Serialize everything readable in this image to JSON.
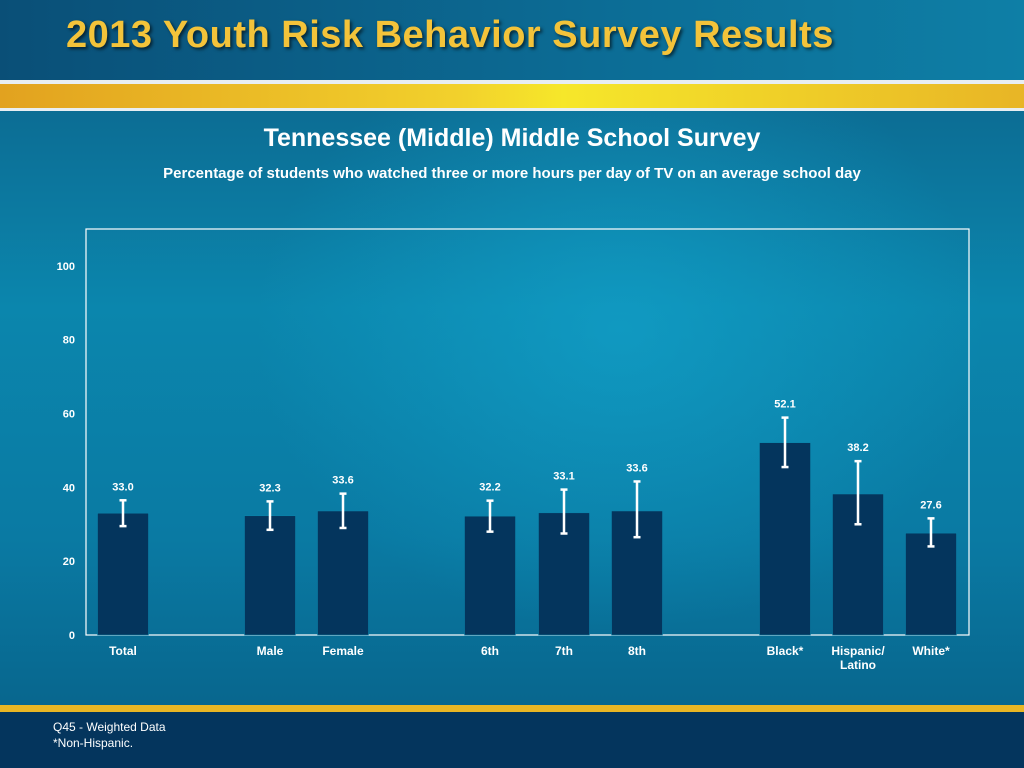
{
  "header": {
    "title": "2013 Youth Risk Behavior Survey Results"
  },
  "footer": {
    "note_line1": "Q45 - Weighted Data",
    "note_line2": "*Non-Hispanic."
  },
  "colors": {
    "bar": "#04355d",
    "error_bar": "#ffffff",
    "title_gold": "#f3c33a",
    "gold_rule": "#f2d12c"
  },
  "chart_data": {
    "type": "bar",
    "title": "Tennessee (Middle) Middle School Survey",
    "subtitle": "Percentage of students who watched three or more hours per day of TV on an average school day",
    "xlabel": "",
    "ylabel": "",
    "ylim": [
      0,
      110
    ],
    "yticks": [
      0,
      20,
      40,
      60,
      80,
      100
    ],
    "grid": false,
    "categories": [
      "Total",
      "Male",
      "Female",
      "6th",
      "7th",
      "8th",
      "Black*",
      "Hispanic/\nLatino",
      "White*"
    ],
    "groups": [
      [
        0
      ],
      [
        1,
        2
      ],
      [
        3,
        4,
        5
      ],
      [
        6,
        7,
        8
      ]
    ],
    "values": [
      33.0,
      32.3,
      33.6,
      32.2,
      33.1,
      33.6,
      52.1,
      38.2,
      27.6
    ],
    "value_labels": [
      "33.0",
      "32.3",
      "33.6",
      "32.2",
      "33.1",
      "33.6",
      "52.1",
      "38.2",
      "27.6"
    ],
    "error_low": [
      29.5,
      28.5,
      29.0,
      28.0,
      27.5,
      26.5,
      45.5,
      30.0,
      24.0
    ],
    "error_high": [
      36.5,
      36.2,
      38.3,
      36.4,
      39.4,
      41.6,
      58.9,
      47.1,
      31.6
    ]
  }
}
